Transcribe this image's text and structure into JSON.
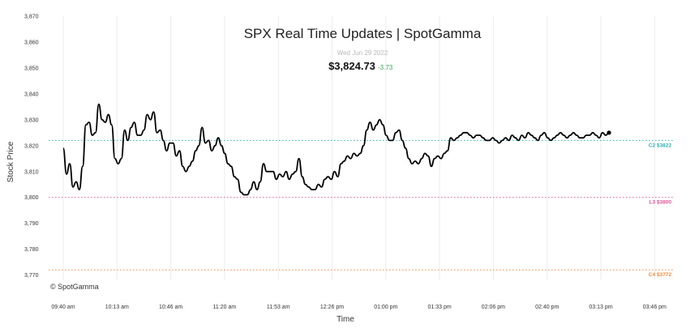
{
  "chart_data": {
    "type": "line",
    "title": "SPX Real Time Updates | SpotGamma",
    "date": "Wed Jun 29 2022",
    "price": "$3,824.73",
    "change": "-3.73",
    "xlabel": "Time",
    "ylabel": "Stock Price",
    "watermark": "© SpotGamma",
    "ylim": [
      3768,
      3870
    ],
    "y_ticks": [
      "3,770",
      "3,780",
      "3,790",
      "3,800",
      "3,810",
      "3,820",
      "3,830",
      "3,840",
      "3,850",
      "3,860",
      "3,870"
    ],
    "y_tick_values": [
      3770,
      3780,
      3790,
      3800,
      3810,
      3820,
      3830,
      3840,
      3850,
      3860,
      3870
    ],
    "x_ticks": [
      "09:40 am",
      "10:13 am",
      "10:46 am",
      "11:20 am",
      "11:53 am",
      "12:26 pm",
      "01:00 pm",
      "01:33 pm",
      "02:06 pm",
      "02:40 pm",
      "03:13 pm",
      "03:46 pm"
    ],
    "grid": true,
    "levels": [
      {
        "label": "C2 $3822",
        "value": 3822,
        "color": "#2cb3b3"
      },
      {
        "label": "L3 $3800",
        "value": 3800,
        "color": "#e0559a"
      },
      {
        "label": "C4 $3772",
        "value": 3772,
        "color": "#f08a3c"
      }
    ],
    "line_color": "#000000",
    "series": [
      {
        "x": [
          "09:40",
          "09:42",
          "09:44",
          "09:46",
          "09:48",
          "09:50",
          "09:52",
          "09:54",
          "09:56",
          "09:58",
          "10:00",
          "10:02",
          "10:04",
          "10:06",
          "10:08",
          "10:10",
          "10:12",
          "10:14",
          "10:16",
          "10:18",
          "10:20",
          "10:22",
          "10:24",
          "10:26",
          "10:28",
          "10:30",
          "10:32",
          "10:34",
          "10:36",
          "10:38",
          "10:40",
          "10:42",
          "10:44",
          "10:46",
          "10:48",
          "10:50",
          "10:52",
          "10:54",
          "10:56",
          "10:58",
          "11:00",
          "11:02",
          "11:04",
          "11:06",
          "11:08",
          "11:10",
          "11:12",
          "11:14",
          "11:16",
          "11:18",
          "11:20",
          "11:22",
          "11:24",
          "11:26",
          "11:28",
          "11:30",
          "11:32",
          "11:34",
          "11:36",
          "11:38",
          "11:40",
          "11:42",
          "11:44",
          "11:46",
          "11:48",
          "11:50",
          "11:52",
          "11:54",
          "11:56",
          "11:58",
          "12:00",
          "12:02",
          "12:04",
          "12:06",
          "12:08",
          "12:10",
          "12:12",
          "12:14",
          "12:16",
          "12:18",
          "12:20",
          "12:22",
          "12:24",
          "12:26",
          "12:28",
          "12:30",
          "12:32",
          "12:34",
          "12:36",
          "12:38",
          "12:40",
          "12:42",
          "12:44",
          "12:46",
          "12:48",
          "12:50",
          "12:52",
          "12:54",
          "12:56",
          "12:58",
          "13:00",
          "13:02",
          "13:04",
          "13:06",
          "13:08",
          "13:10",
          "13:12",
          "13:14",
          "13:16",
          "13:18",
          "13:20",
          "13:22",
          "13:24",
          "13:26",
          "13:28",
          "13:30",
          "13:32",
          "13:34",
          "13:36",
          "13:38",
          "13:40",
          "13:42",
          "13:44",
          "13:46",
          "13:48",
          "13:50",
          "13:52",
          "13:54",
          "13:56",
          "13:58",
          "14:00",
          "14:02",
          "14:04",
          "14:06",
          "14:08",
          "14:10",
          "14:12",
          "14:14",
          "14:16",
          "14:18",
          "14:20",
          "14:22",
          "14:24",
          "14:26",
          "14:28",
          "14:30",
          "14:32",
          "14:34",
          "14:36",
          "14:38",
          "14:40",
          "14:42",
          "14:44",
          "14:46",
          "14:48",
          "14:50",
          "14:52",
          "14:54",
          "14:56",
          "14:58",
          "15:00",
          "15:02",
          "15:04",
          "15:06",
          "15:08",
          "15:10",
          "15:12",
          "15:14",
          "15:16",
          "15:18"
        ],
        "values": [
          3819,
          3809,
          3813,
          3804,
          3806,
          3803,
          3812,
          3828,
          3829,
          3824,
          3825,
          3836,
          3830,
          3829,
          3832,
          3828,
          3815,
          3813,
          3815,
          3826,
          3822,
          3827,
          3829,
          3824,
          3824,
          3826,
          3832,
          3830,
          3833,
          3825,
          3826,
          3822,
          3818,
          3821,
          3821,
          3816,
          3818,
          3812,
          3810,
          3812,
          3814,
          3818,
          3820,
          3827,
          3821,
          3822,
          3818,
          3820,
          3823,
          3820,
          3817,
          3813,
          3812,
          3808,
          3807,
          3802,
          3801,
          3801,
          3803,
          3806,
          3803,
          3806,
          3813,
          3810,
          3810,
          3810,
          3807,
          3809,
          3808,
          3810,
          3807,
          3809,
          3810,
          3815,
          3808,
          3805,
          3804,
          3803,
          3803,
          3805,
          3804,
          3807,
          3808,
          3807,
          3810,
          3808,
          3813,
          3814,
          3816,
          3815,
          3817,
          3816,
          3817,
          3820,
          3826,
          3829,
          3826,
          3828,
          3830,
          3828,
          3824,
          3822,
          3822,
          3825,
          3826,
          3822,
          3819,
          3815,
          3813,
          3814,
          3813,
          3815,
          3817,
          3816,
          3812,
          3815,
          3816,
          3815,
          3817,
          3818,
          3823,
          3822,
          3823,
          3824,
          3825,
          3825,
          3824,
          3823,
          3824,
          3824,
          3823,
          3822,
          3822,
          3823,
          3822,
          3821,
          3822,
          3823,
          3822,
          3824,
          3823,
          3822,
          3824,
          3823,
          3825,
          3824,
          3823,
          3822,
          3824,
          3825,
          3823,
          3822,
          3823,
          3824,
          3825,
          3824,
          3823,
          3824,
          3825,
          3824,
          3823,
          3823,
          3824,
          3824,
          3825,
          3824,
          3823,
          3825,
          3824,
          3825
        ]
      }
    ]
  }
}
